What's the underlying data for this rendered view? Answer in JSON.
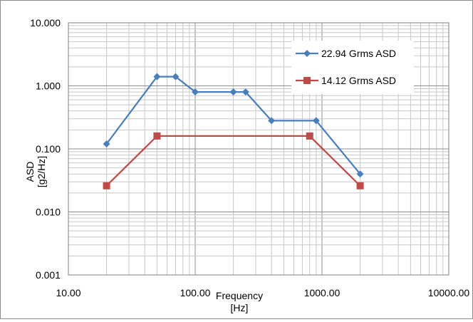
{
  "chart_data": {
    "type": "line",
    "xscale": "log",
    "yscale": "log",
    "xlim": [
      10,
      10000
    ],
    "ylim": [
      0.001,
      10
    ],
    "xticks": [
      "10.00",
      "100.00",
      "1000.00",
      "10000.00"
    ],
    "yticks": [
      "0.001",
      "0.010",
      "0.100",
      "1.000",
      "10.000"
    ],
    "xlabel": [
      "Frequency",
      "[Hz]"
    ],
    "ylabel": [
      "ASD",
      "[g2/Hz]"
    ],
    "grid": true,
    "legend_position": "top-right",
    "series": [
      {
        "name": "22.94 Grms ASD",
        "color": "#4a7ebb",
        "marker": "diamond",
        "points": [
          [
            20,
            0.12
          ],
          [
            50,
            1.4
          ],
          [
            70,
            1.4
          ],
          [
            100,
            0.8
          ],
          [
            200,
            0.8
          ],
          [
            250,
            0.8
          ],
          [
            400,
            0.28
          ],
          [
            900,
            0.28
          ],
          [
            2000,
            0.04
          ]
        ]
      },
      {
        "name": "14.12 Grms ASD",
        "color": "#be4b48",
        "marker": "square",
        "points": [
          [
            20,
            0.026
          ],
          [
            50,
            0.16
          ],
          [
            800,
            0.16
          ],
          [
            2000,
            0.026
          ]
        ]
      }
    ]
  }
}
